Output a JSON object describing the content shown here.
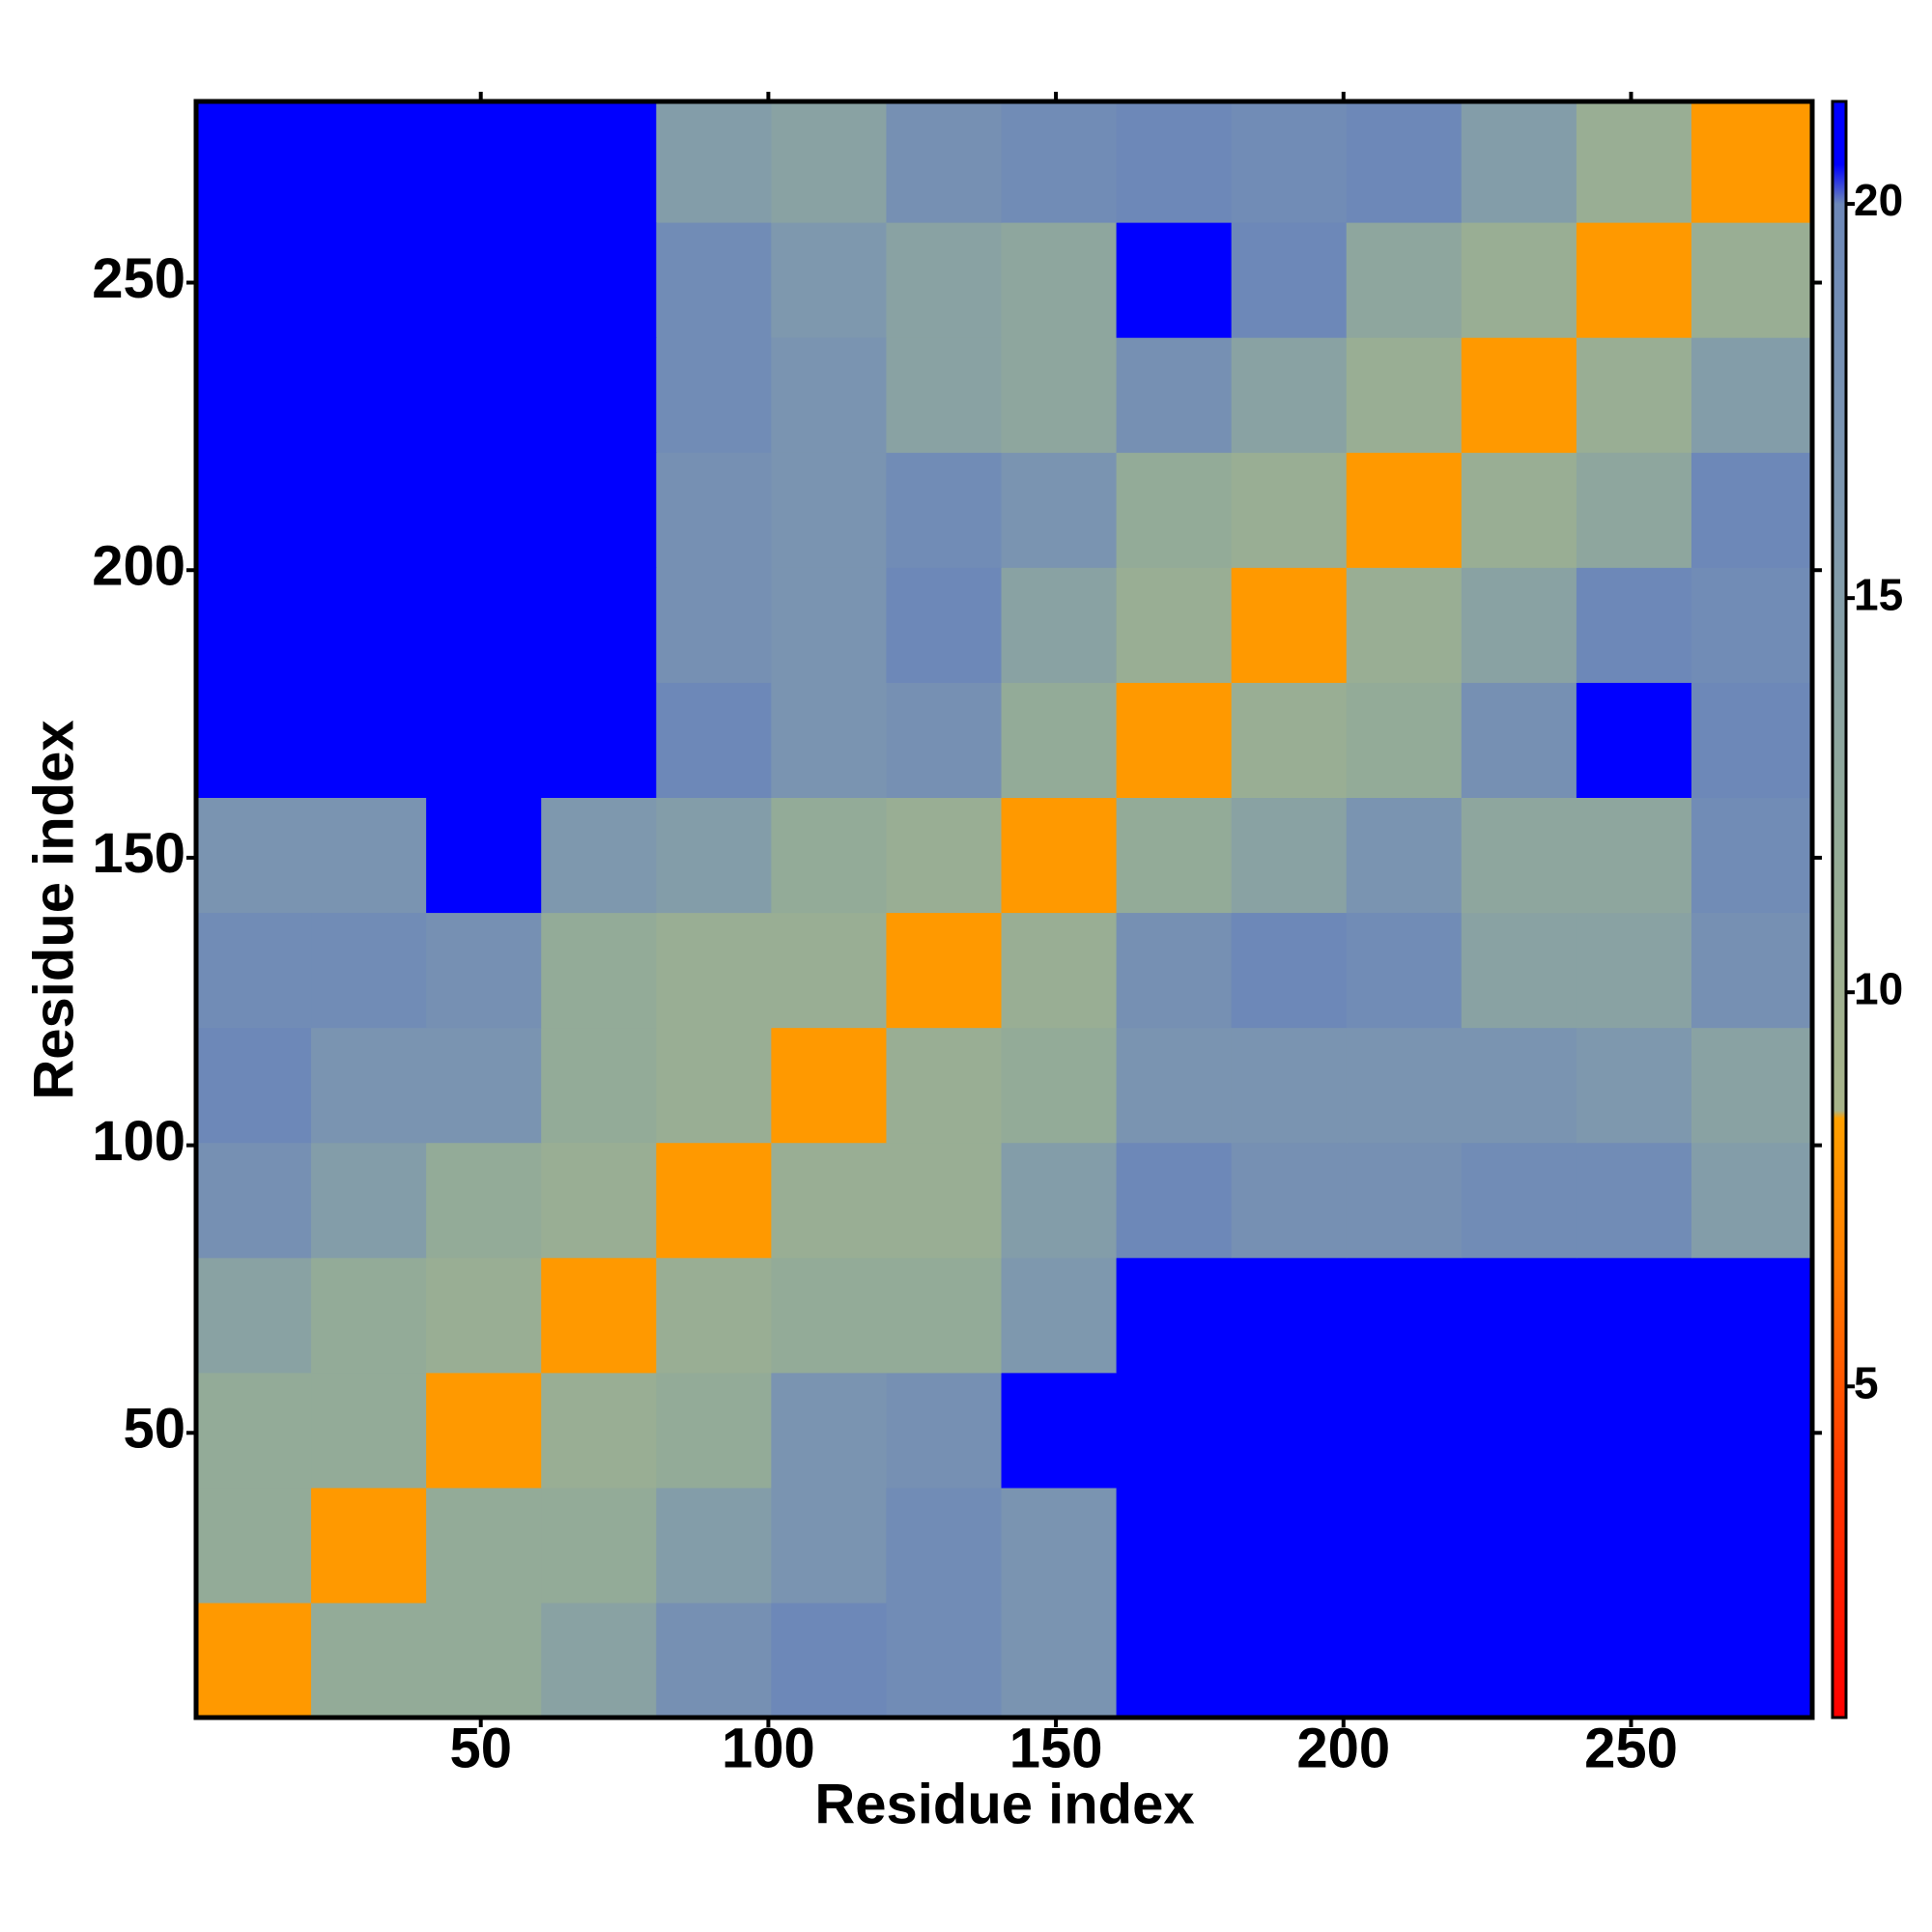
{
  "chart_data": {
    "type": "heatmap",
    "xlabel": "Residue index",
    "ylabel": "Residue index",
    "xlim": [
      0.5,
      281.5
    ],
    "ylim": [
      0.5,
      281.5
    ],
    "xticks": [
      50,
      100,
      150,
      200,
      250
    ],
    "yticks": [
      50,
      100,
      150,
      200,
      250
    ],
    "xbins": [
      0.5,
      20.5,
      40.5,
      60.5,
      80.5,
      100.5,
      120.5,
      140.5,
      160.5,
      180.5,
      200.5,
      220.5,
      240.5,
      260.5,
      281.5
    ],
    "ybins": [
      0.5,
      20.5,
      40.5,
      60.5,
      80.5,
      100.5,
      120.5,
      140.5,
      160.5,
      180.5,
      200.5,
      220.5,
      240.5,
      260.5,
      281.5
    ],
    "z": [
      [
        8,
        12,
        12,
        14,
        18,
        20,
        19,
        17,
        21,
        21,
        21,
        21,
        21,
        21
      ],
      [
        12,
        8,
        12,
        12,
        15,
        17,
        19,
        17,
        21,
        21,
        21,
        21,
        21,
        21
      ],
      [
        12,
        12,
        8,
        11,
        12,
        17,
        18,
        21,
        21,
        21,
        21,
        21,
        21,
        21
      ],
      [
        14,
        12,
        11,
        8,
        11,
        12,
        12,
        16,
        21,
        21,
        21,
        21,
        21,
        21
      ],
      [
        18,
        15,
        12,
        11,
        8,
        11,
        11,
        15,
        20,
        18,
        18,
        19,
        19,
        15
      ],
      [
        20,
        17,
        17,
        12,
        11,
        8,
        11,
        12,
        17,
        17,
        17,
        17,
        16,
        14
      ],
      [
        19,
        19,
        18,
        12,
        11,
        11,
        8,
        11,
        18,
        20,
        19,
        14,
        14,
        18
      ],
      [
        17,
        17,
        21,
        16,
        15,
        12,
        11,
        8,
        12,
        14,
        17,
        13,
        13,
        19
      ],
      [
        21,
        21,
        21,
        21,
        20,
        17,
        18,
        12,
        8,
        11,
        12,
        18,
        21,
        20
      ],
      [
        21,
        21,
        21,
        21,
        18,
        17,
        20,
        14,
        11,
        8,
        11,
        14,
        20,
        19
      ],
      [
        21,
        21,
        21,
        21,
        18,
        17,
        19,
        17,
        12,
        11,
        8,
        11,
        13,
        20
      ],
      [
        21,
        21,
        21,
        21,
        19,
        17,
        14,
        13,
        18,
        14,
        11,
        8,
        11,
        15
      ],
      [
        21,
        21,
        21,
        21,
        19,
        16,
        14,
        13,
        21,
        20,
        13,
        11,
        8,
        11
      ],
      [
        21,
        21,
        21,
        21,
        15,
        14,
        18,
        19,
        20,
        19,
        20,
        15,
        11,
        8
      ]
    ],
    "zlim": [
      0.8,
      21.3
    ],
    "zticks": [
      5,
      10,
      15,
      20
    ],
    "colorscale": [
      [
        0.8,
        "#ff0000"
      ],
      [
        4,
        "#ff3a00"
      ],
      [
        6.5,
        "#ff7d00"
      ],
      [
        8.4,
        "#ffa000"
      ],
      [
        8.5,
        "#a8b48a"
      ],
      [
        12,
        "#93ab98"
      ],
      [
        16,
        "#7e98ae"
      ],
      [
        20,
        "#6d88b8"
      ],
      [
        20.5,
        "#0000ff"
      ],
      [
        21.3,
        "#0000ff"
      ]
    ]
  }
}
